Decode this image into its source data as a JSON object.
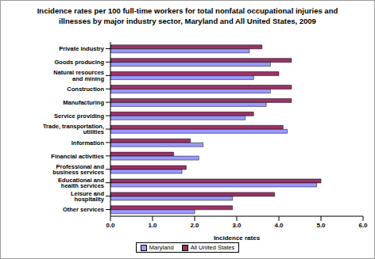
{
  "chart_data": {
    "type": "bar",
    "orientation": "horizontal",
    "title": "Incidence rates per 100 full-time workers for total nonfatal occupational injuries and illnesses by major industry sector, Maryland and All United States, 2009",
    "x_label": "Incidence rates",
    "categories": [
      "Private industry",
      "Goods producing",
      "Natural resources and mining",
      "Construction",
      "Manufacturing",
      "Service providing",
      "Trade, transportation, utilities",
      "Information",
      "Financial activities",
      "Professional and business services",
      "Educational and health services",
      "Leisure and hospitality",
      "Other services"
    ],
    "series": [
      {
        "name": "Maryland",
        "color": "#9999FF",
        "values": [
          3.3,
          3.8,
          3.4,
          3.8,
          3.7,
          3.2,
          4.2,
          2.2,
          2.1,
          1.7,
          4.9,
          2.9,
          2.0
        ]
      },
      {
        "name": "All United States",
        "color": "#993366",
        "values": [
          3.6,
          4.3,
          4.0,
          4.3,
          4.3,
          3.4,
          4.1,
          1.9,
          1.5,
          1.8,
          5.0,
          3.9,
          2.9
        ]
      }
    ],
    "xlim": [
      0,
      6
    ],
    "xticks": [
      {
        "value": 0,
        "label": "0.0"
      },
      {
        "value": 1,
        "label": "1.0"
      },
      {
        "value": 2,
        "label": "2.0"
      },
      {
        "value": 3,
        "label": "3.0"
      },
      {
        "value": 4,
        "label": "4.0"
      },
      {
        "value": 5,
        "label": "5.0"
      },
      {
        "value": 6,
        "label": "6.0"
      }
    ],
    "grid": false,
    "legend": "bottom"
  }
}
